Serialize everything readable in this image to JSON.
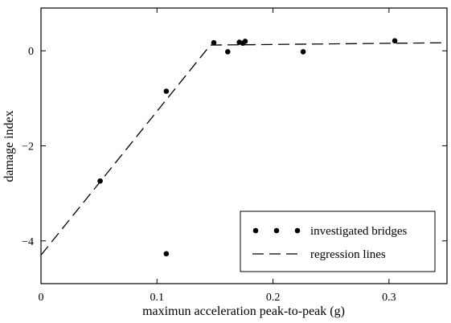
{
  "chart_data": {
    "type": "scatter",
    "title": "",
    "xlabel": "maximun acceleration peak-to-peak (g)",
    "ylabel": "damage index",
    "xlim": [
      0,
      0.35
    ],
    "ylim": [
      -4.9,
      0.9
    ],
    "grid": false,
    "legend_position": "bottom-right",
    "x_ticks": [
      {
        "value": 0,
        "label": "0"
      },
      {
        "value": 0.1,
        "label": "0.1"
      },
      {
        "value": 0.2,
        "label": "0.2"
      },
      {
        "value": 0.3,
        "label": "0.3"
      }
    ],
    "y_ticks": [
      {
        "value": 0,
        "label": "0"
      },
      {
        "value": -2,
        "label": "−2"
      },
      {
        "value": -4,
        "label": "−4"
      }
    ],
    "series": [
      {
        "name": "investigated bridges",
        "kind": "points",
        "points": [
          {
            "x": 0.051,
            "y": -2.74
          },
          {
            "x": 0.108,
            "y": -0.85
          },
          {
            "x": 0.108,
            "y": -4.27
          },
          {
            "x": 0.149,
            "y": 0.17
          },
          {
            "x": 0.161,
            "y": -0.02
          },
          {
            "x": 0.171,
            "y": 0.18
          },
          {
            "x": 0.174,
            "y": 0.16
          },
          {
            "x": 0.176,
            "y": 0.2
          },
          {
            "x": 0.226,
            "y": -0.02
          },
          {
            "x": 0.305,
            "y": 0.21
          }
        ]
      },
      {
        "name": "regression lines",
        "kind": "dashed-line",
        "points": [
          {
            "x": 0.0,
            "y": -4.3
          },
          {
            "x": 0.146,
            "y": 0.12
          },
          {
            "x": 0.35,
            "y": 0.17
          }
        ]
      }
    ],
    "legend": {
      "entries": [
        {
          "label": "investigated bridges",
          "marker": "dots"
        },
        {
          "label": "regression lines",
          "marker": "dash"
        }
      ]
    }
  }
}
